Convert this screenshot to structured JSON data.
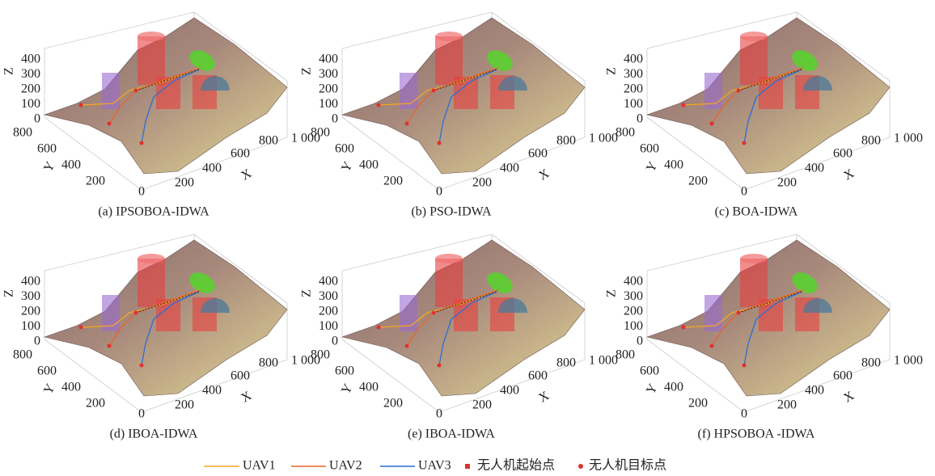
{
  "panels": [
    {
      "caption": "(a) IPSOBOA-IDWA"
    },
    {
      "caption": "(b) PSO-IDWA"
    },
    {
      "caption": "(c) BOA-IDWA"
    },
    {
      "caption": "(d) IBOA-IDWA"
    },
    {
      "caption": "(e)  IBOA-IDWA"
    },
    {
      "caption": "(f) HPSOBOA -IDWA"
    }
  ],
  "axes": {
    "z_label": "Z",
    "y_label": "Y",
    "x_label": "X",
    "zticks": [
      0,
      100,
      200,
      300,
      400
    ],
    "yticks": [
      200,
      400,
      600,
      800
    ],
    "xticks": [
      0,
      200,
      400,
      600,
      800,
      {
        "value": 1000,
        "label": "1 000"
      }
    ]
  },
  "legend": [
    "UAV1",
    "UAV2",
    "UAV3",
    "无人机起始点",
    "无人机目标点"
  ]
}
